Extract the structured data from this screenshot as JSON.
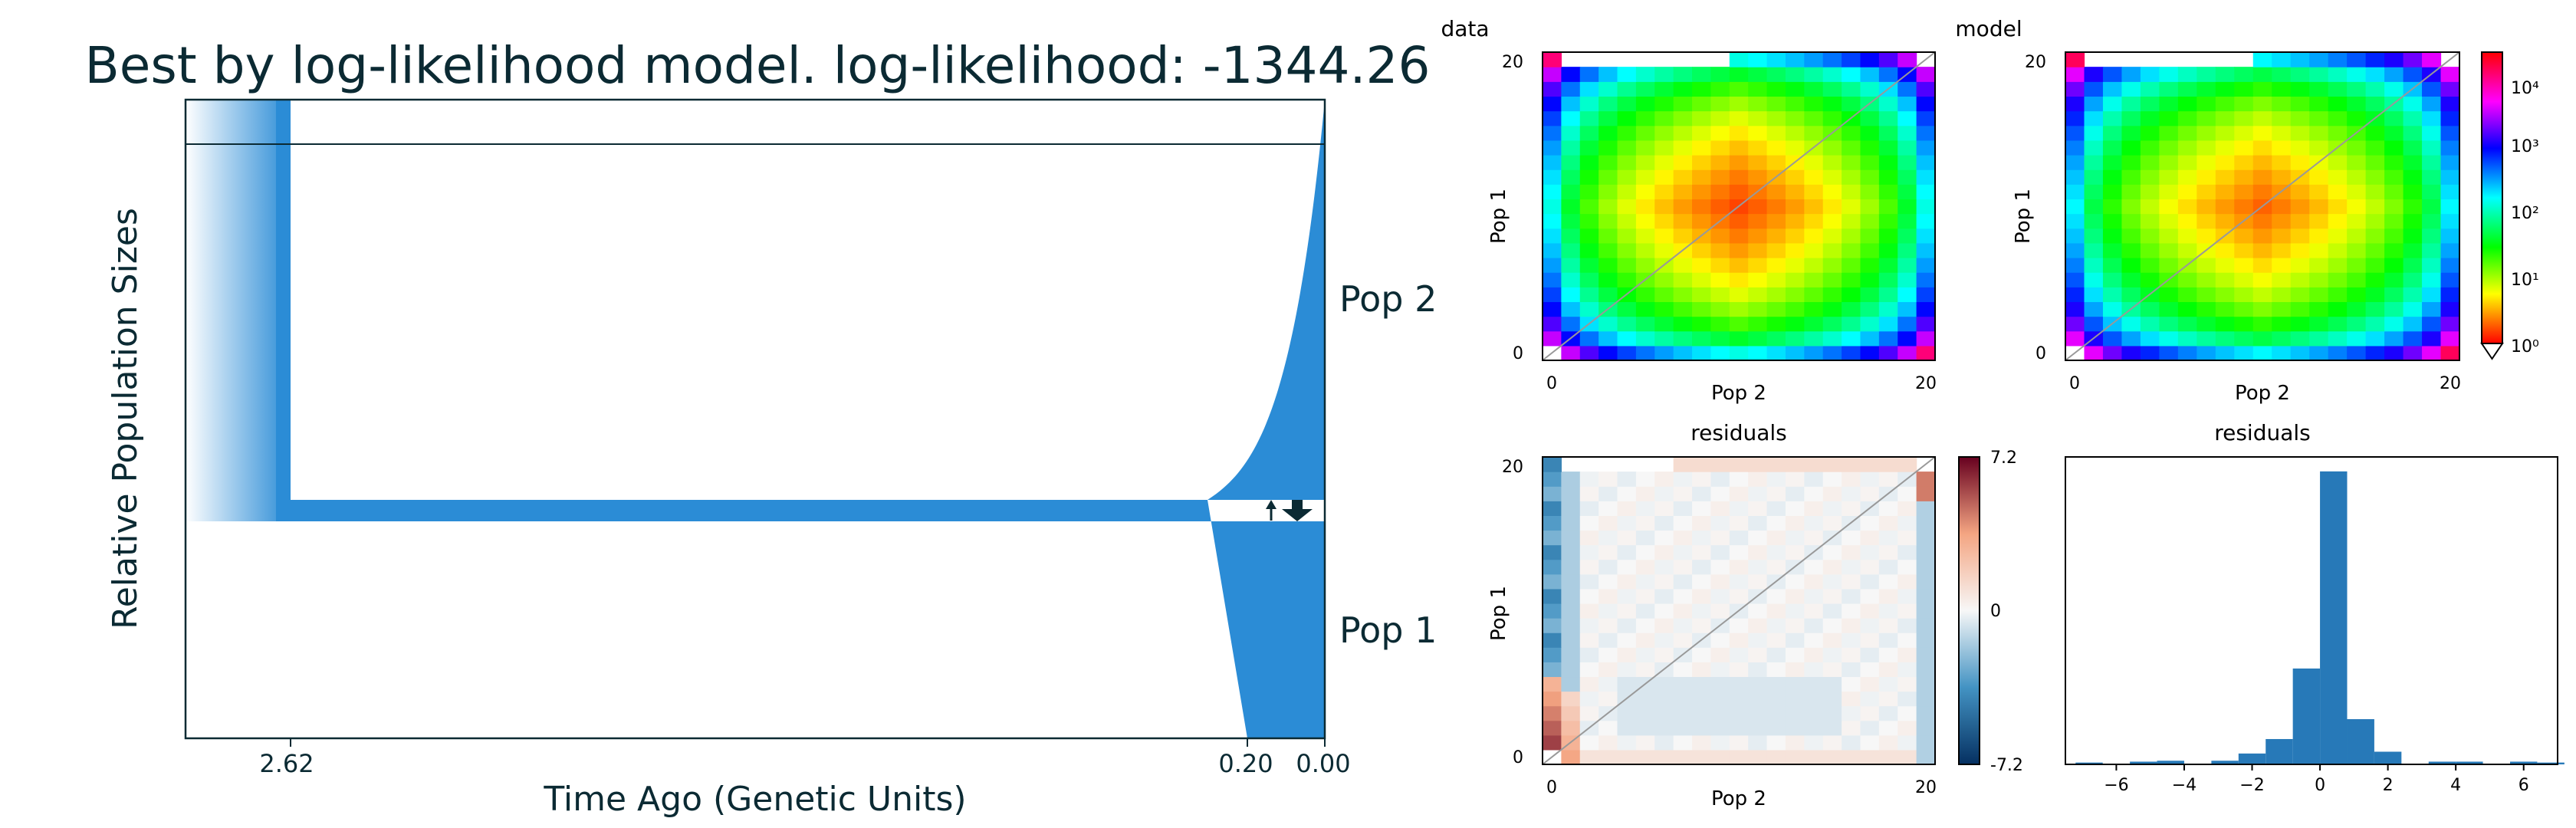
{
  "chart_data": [
    {
      "type": "demographic-model",
      "title": "Best by log-likelihood model. log-likelihood: -1344.26",
      "xlabel": "Time Ago (Genetic Units)",
      "ylabel": "Relative Population Sizes",
      "xticks": [
        "2.62",
        "0.20",
        "0.00"
      ],
      "populations": [
        "Pop 2",
        "Pop 1"
      ],
      "split_time": 2.62,
      "second_split_time": 0.2,
      "colors": {
        "pop": "#2b8cd6",
        "line": "#0b2a33"
      }
    },
    {
      "type": "heatmap",
      "title": "data",
      "xlabel": "Pop 2",
      "ylabel": "Pop 1",
      "xticks": [
        "0",
        "20"
      ],
      "yticks": [
        "0",
        "20"
      ],
      "n": 21,
      "scale": "log"
    },
    {
      "type": "heatmap",
      "title": "model",
      "xlabel": "Pop 2",
      "ylabel": "Pop 1",
      "xticks": [
        "0",
        "20"
      ],
      "yticks": [
        "0",
        "20"
      ],
      "n": 21,
      "scale": "log",
      "colorbar_ticks": [
        "10⁴",
        "10³",
        "10²",
        "10¹",
        "10⁰"
      ]
    },
    {
      "type": "heatmap",
      "title": "residuals",
      "xlabel": "Pop 2",
      "ylabel": "Pop 1",
      "xticks": [
        "0",
        "20"
      ],
      "yticks": [
        "0",
        "20"
      ],
      "n": 21,
      "colorbar_ticks": [
        "7.2",
        "0",
        "-7.2"
      ],
      "range": [
        -7.2,
        7.2
      ]
    },
    {
      "type": "bar",
      "title": "residuals",
      "xticks": [
        "−6",
        "−4",
        "−2",
        "0",
        "2",
        "4",
        "6"
      ],
      "xlim": [
        -7.5,
        7
      ],
      "ylim": [
        0,
        170
      ],
      "bins": [
        {
          "x0": -7.2,
          "x1": -6.4,
          "count": 1
        },
        {
          "x0": -5.6,
          "x1": -4.8,
          "count": 1.5
        },
        {
          "x0": -4.8,
          "x1": -4.0,
          "count": 2
        },
        {
          "x0": -3.2,
          "x1": -2.4,
          "count": 2
        },
        {
          "x0": -2.4,
          "x1": -1.6,
          "count": 6
        },
        {
          "x0": -1.6,
          "x1": -0.8,
          "count": 14
        },
        {
          "x0": -0.8,
          "x1": 0.0,
          "count": 53
        },
        {
          "x0": 0.0,
          "x1": 0.8,
          "count": 162
        },
        {
          "x0": 0.8,
          "x1": 1.6,
          "count": 25
        },
        {
          "x0": 1.6,
          "x1": 2.4,
          "count": 7
        },
        {
          "x0": 3.2,
          "x1": 4.0,
          "count": 1.5
        },
        {
          "x0": 4.0,
          "x1": 4.8,
          "count": 1.5
        },
        {
          "x0": 5.6,
          "x1": 6.4,
          "count": 1.5
        },
        {
          "x0": 6.4,
          "x1": 7.2,
          "count": 1
        }
      ],
      "color": "#2779b8"
    }
  ]
}
